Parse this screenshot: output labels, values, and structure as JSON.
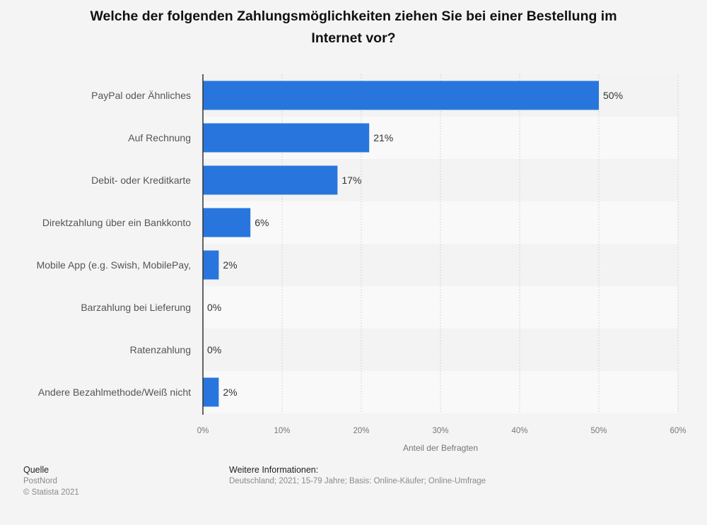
{
  "chart_data": {
    "type": "bar",
    "orientation": "horizontal",
    "title": "Welche der folgenden Zahlungsmöglichkeiten ziehen Sie bei einer Bestellung im Internet vor?",
    "title_lines": [
      "Welche der folgenden Zahlungsmöglichkeiten ziehen Sie bei einer Bestellung im",
      "Internet vor?"
    ],
    "categories": [
      "PayPal oder Ähnliches",
      "Auf Rechnung",
      "Debit- oder Kreditkarte",
      "Direktzahlung über ein Bankkonto",
      "Mobile App (e.g. Swish, MobilePay,",
      "Barzahlung bei Lieferung",
      "Ratenzahlung",
      "Andere Bezahlmethode/Weiß nicht"
    ],
    "values": [
      50,
      21,
      17,
      6,
      2,
      0,
      0,
      2
    ],
    "value_labels": [
      "50%",
      "21%",
      "17%",
      "6%",
      "2%",
      "0%",
      "0%",
      "2%"
    ],
    "xlabel": "Anteil der Befragten",
    "ylabel": "",
    "xlim": [
      0,
      60
    ],
    "ticks": [
      0,
      10,
      20,
      30,
      40,
      50,
      60
    ],
    "tick_labels": [
      "0%",
      "10%",
      "20%",
      "30%",
      "40%",
      "50%",
      "60%"
    ],
    "grid": true,
    "legend": "none",
    "bar_color": "#2876dd"
  },
  "footer": {
    "source_heading": "Quelle",
    "source": "PostNord",
    "copyright": "© Statista 2021",
    "info_heading": "Weitere Informationen:",
    "info": "Deutschland; 2021; 15-79 Jahre; Basis: Online-Käufer; Online-Umfrage"
  }
}
